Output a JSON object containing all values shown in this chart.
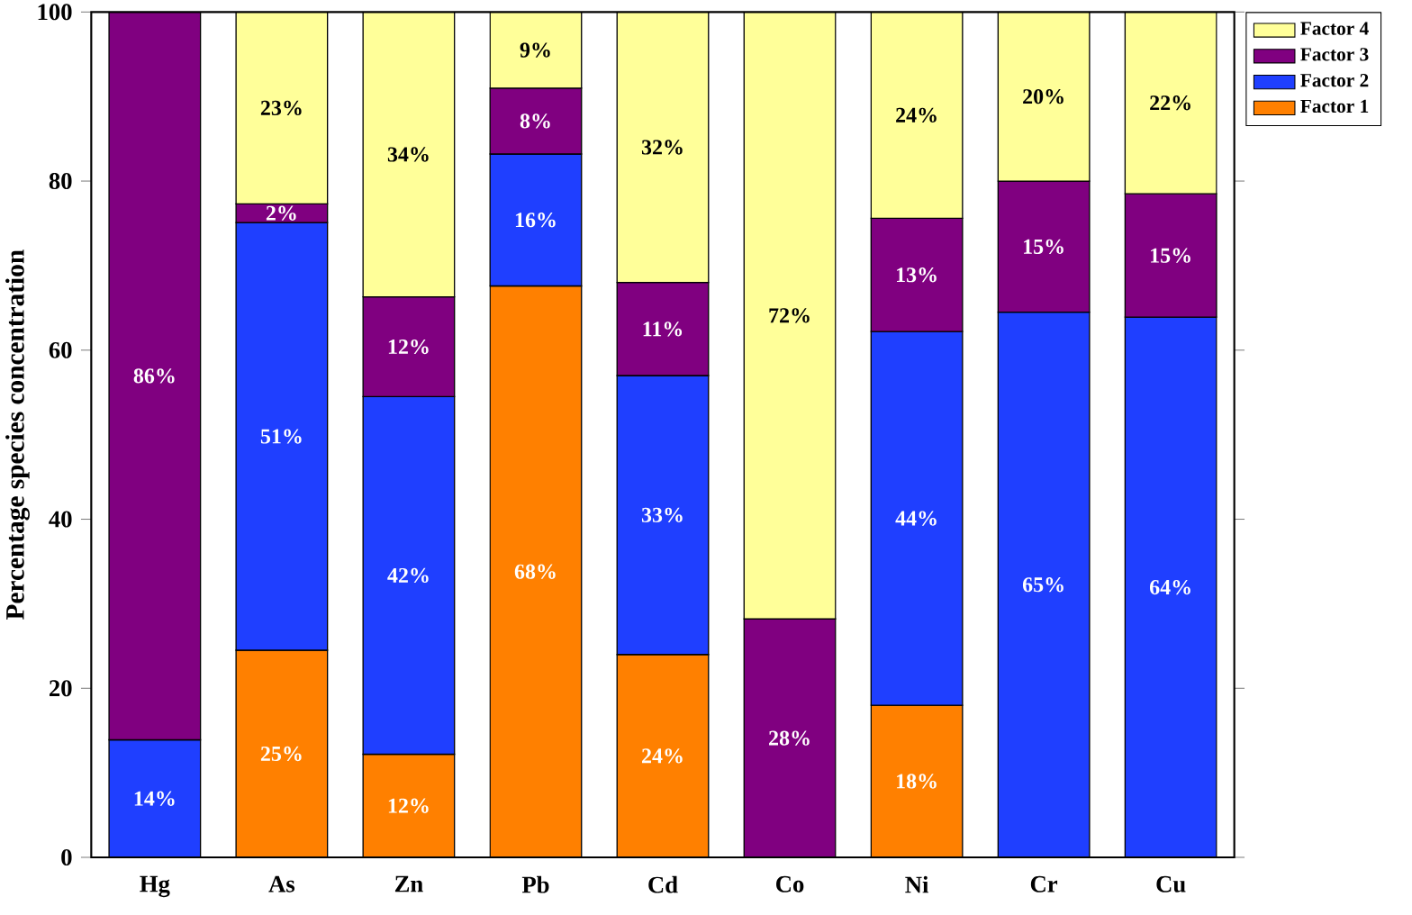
{
  "chart_data": {
    "type": "bar",
    "stacked": true,
    "ylabel": "Percentage species concentration",
    "categories": [
      "Hg",
      "As",
      "Zn",
      "Pb",
      "Cd",
      "Co",
      "Ni",
      "Cr",
      "Cu"
    ],
    "series": [
      {
        "name": "Factor 1",
        "color": "#ff8000",
        "values": [
          null,
          24.5,
          12.2,
          67.6,
          24.0,
          null,
          18.0,
          null,
          null
        ],
        "value_labels": [
          null,
          "25%",
          "12%",
          "68%",
          "24%",
          null,
          "18%",
          null,
          null
        ]
      },
      {
        "name": "Factor 2",
        "color": "#1f3fff",
        "values": [
          13.9,
          50.6,
          42.3,
          15.6,
          33.0,
          null,
          44.2,
          64.5,
          63.9
        ],
        "value_labels": [
          "14%",
          "51%",
          "42%",
          "16%",
          "33%",
          null,
          "44%",
          "65%",
          "64%"
        ]
      },
      {
        "name": "Factor 3",
        "color": "#800080",
        "values": [
          86.1,
          2.2,
          11.8,
          7.8,
          11.0,
          28.2,
          13.4,
          15.5,
          14.6
        ],
        "value_labels": [
          "86%",
          "2%",
          "12%",
          "8%",
          "11%",
          "28%",
          "13%",
          "15%",
          "15%"
        ]
      },
      {
        "name": "Factor 4",
        "color": "#ffff99",
        "values": [
          null,
          22.7,
          33.7,
          9.0,
          32.0,
          71.8,
          24.4,
          20.0,
          21.5
        ],
        "value_labels": [
          null,
          "23%",
          "34%",
          "9%",
          "32%",
          "72%",
          "24%",
          "20%",
          "22%"
        ]
      }
    ],
    "ylim": [
      0,
      100
    ],
    "yticks": [
      0,
      20,
      40,
      60,
      80,
      100
    ],
    "legend": "top right",
    "grid": false
  }
}
